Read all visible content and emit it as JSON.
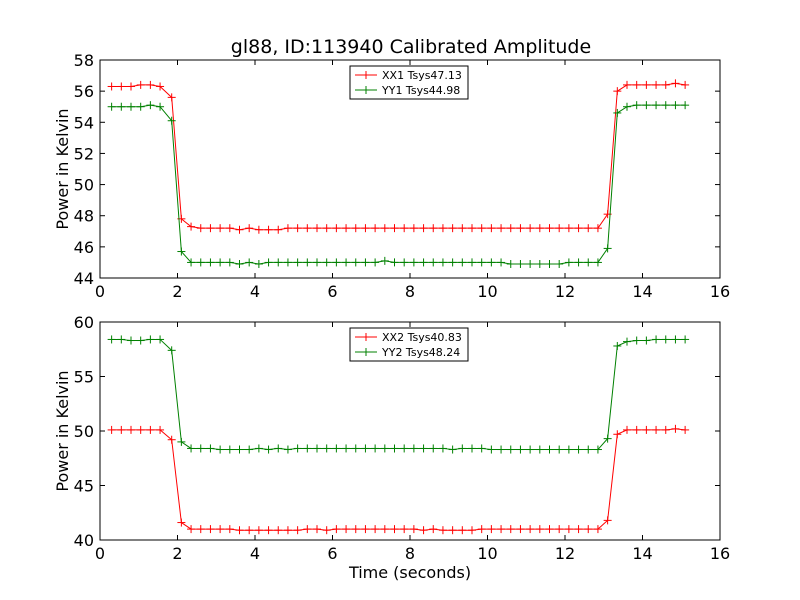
{
  "title": "gl88, ID:113940 Calibrated Amplitude",
  "chart_data": [
    {
      "type": "line",
      "ylabel": "Power in Kelvin",
      "xlabel": "",
      "xlim": [
        0,
        16
      ],
      "ylim": [
        44,
        58
      ],
      "xticks": [
        "0",
        "2",
        "4",
        "6",
        "8",
        "10",
        "12",
        "14",
        "16"
      ],
      "yticks": [
        "44",
        "46",
        "48",
        "50",
        "52",
        "54",
        "56",
        "58"
      ],
      "legend_position": "top-center",
      "x": [
        0.3,
        0.55,
        0.8,
        1.05,
        1.3,
        1.55,
        1.85,
        2.1,
        2.35,
        2.6,
        2.85,
        3.1,
        3.35,
        3.6,
        3.85,
        4.1,
        4.35,
        4.6,
        4.85,
        5.1,
        5.35,
        5.6,
        5.85,
        6.1,
        6.35,
        6.6,
        6.85,
        7.1,
        7.35,
        7.6,
        7.85,
        8.1,
        8.35,
        8.6,
        8.85,
        9.1,
        9.35,
        9.6,
        9.85,
        10.1,
        10.35,
        10.6,
        10.85,
        11.1,
        11.35,
        11.6,
        11.85,
        12.1,
        12.35,
        12.6,
        12.85,
        13.1,
        13.35,
        13.6,
        13.85,
        14.1,
        14.35,
        14.6,
        14.85,
        15.1
      ],
      "series": [
        {
          "name": "XX1 Tsys47.13",
          "color": "#ff0000",
          "values": [
            56.3,
            56.3,
            56.3,
            56.4,
            56.4,
            56.3,
            55.6,
            47.8,
            47.3,
            47.2,
            47.2,
            47.2,
            47.2,
            47.1,
            47.2,
            47.1,
            47.1,
            47.1,
            47.2,
            47.2,
            47.2,
            47.2,
            47.2,
            47.2,
            47.2,
            47.2,
            47.2,
            47.2,
            47.2,
            47.2,
            47.2,
            47.2,
            47.2,
            47.2,
            47.2,
            47.2,
            47.2,
            47.2,
            47.2,
            47.2,
            47.2,
            47.2,
            47.2,
            47.2,
            47.2,
            47.2,
            47.2,
            47.2,
            47.2,
            47.2,
            47.2,
            48.1,
            56.0,
            56.4,
            56.4,
            56.4,
            56.4,
            56.4,
            56.5,
            56.4
          ]
        },
        {
          "name": "YY1 Tsys44.98",
          "color": "#008000",
          "values": [
            55.0,
            55.0,
            55.0,
            55.0,
            55.1,
            55.0,
            54.1,
            45.7,
            45.0,
            45.0,
            45.0,
            45.0,
            45.0,
            44.9,
            45.0,
            44.9,
            45.0,
            45.0,
            45.0,
            45.0,
            45.0,
            45.0,
            45.0,
            45.0,
            45.0,
            45.0,
            45.0,
            45.0,
            45.1,
            45.0,
            45.0,
            45.0,
            45.0,
            45.0,
            45.0,
            45.0,
            45.0,
            45.0,
            45.0,
            45.0,
            45.0,
            44.9,
            44.9,
            44.9,
            44.9,
            44.9,
            44.9,
            45.0,
            45.0,
            45.0,
            45.0,
            45.9,
            54.6,
            55.0,
            55.1,
            55.1,
            55.1,
            55.1,
            55.1,
            55.1
          ]
        }
      ]
    },
    {
      "type": "line",
      "ylabel": "Power in Kelvin",
      "xlabel": "Time (seconds)",
      "xlim": [
        0,
        16
      ],
      "ylim": [
        40,
        60
      ],
      "xticks": [
        "0",
        "2",
        "4",
        "6",
        "8",
        "10",
        "12",
        "14",
        "16"
      ],
      "yticks": [
        "40",
        "45",
        "50",
        "55",
        "60"
      ],
      "legend_position": "top-center",
      "x": [
        0.3,
        0.55,
        0.8,
        1.05,
        1.3,
        1.55,
        1.85,
        2.1,
        2.35,
        2.6,
        2.85,
        3.1,
        3.35,
        3.6,
        3.85,
        4.1,
        4.35,
        4.6,
        4.85,
        5.1,
        5.35,
        5.6,
        5.85,
        6.1,
        6.35,
        6.6,
        6.85,
        7.1,
        7.35,
        7.6,
        7.85,
        8.1,
        8.35,
        8.6,
        8.85,
        9.1,
        9.35,
        9.6,
        9.85,
        10.1,
        10.35,
        10.6,
        10.85,
        11.1,
        11.35,
        11.6,
        11.85,
        12.1,
        12.35,
        12.6,
        12.85,
        13.1,
        13.35,
        13.6,
        13.85,
        14.1,
        14.35,
        14.6,
        14.85,
        15.1
      ],
      "series": [
        {
          "name": "XX2 Tsys40.83",
          "color": "#ff0000",
          "values": [
            50.1,
            50.1,
            50.1,
            50.1,
            50.1,
            50.1,
            49.2,
            41.6,
            41.0,
            41.0,
            41.0,
            41.0,
            41.0,
            40.9,
            40.9,
            40.9,
            40.9,
            40.9,
            40.9,
            40.9,
            41.0,
            41.0,
            40.9,
            41.0,
            41.0,
            41.0,
            41.0,
            41.0,
            41.0,
            41.0,
            41.0,
            41.0,
            40.9,
            41.0,
            40.9,
            40.9,
            40.9,
            40.9,
            41.0,
            41.0,
            41.0,
            41.0,
            41.0,
            41.0,
            41.0,
            41.0,
            41.0,
            41.0,
            41.0,
            41.0,
            41.0,
            41.8,
            49.7,
            50.1,
            50.1,
            50.1,
            50.1,
            50.1,
            50.2,
            50.1
          ]
        },
        {
          "name": "YY2 Tsys48.24",
          "color": "#008000",
          "values": [
            58.4,
            58.4,
            58.3,
            58.3,
            58.4,
            58.4,
            57.4,
            49.0,
            48.4,
            48.4,
            48.4,
            48.3,
            48.3,
            48.3,
            48.3,
            48.4,
            48.3,
            48.4,
            48.3,
            48.4,
            48.4,
            48.4,
            48.4,
            48.4,
            48.4,
            48.4,
            48.4,
            48.4,
            48.4,
            48.4,
            48.4,
            48.4,
            48.4,
            48.4,
            48.4,
            48.3,
            48.4,
            48.4,
            48.4,
            48.3,
            48.3,
            48.3,
            48.3,
            48.3,
            48.3,
            48.3,
            48.3,
            48.3,
            48.3,
            48.3,
            48.3,
            49.3,
            57.8,
            58.2,
            58.3,
            58.3,
            58.4,
            58.4,
            58.4,
            58.4
          ]
        }
      ]
    }
  ]
}
